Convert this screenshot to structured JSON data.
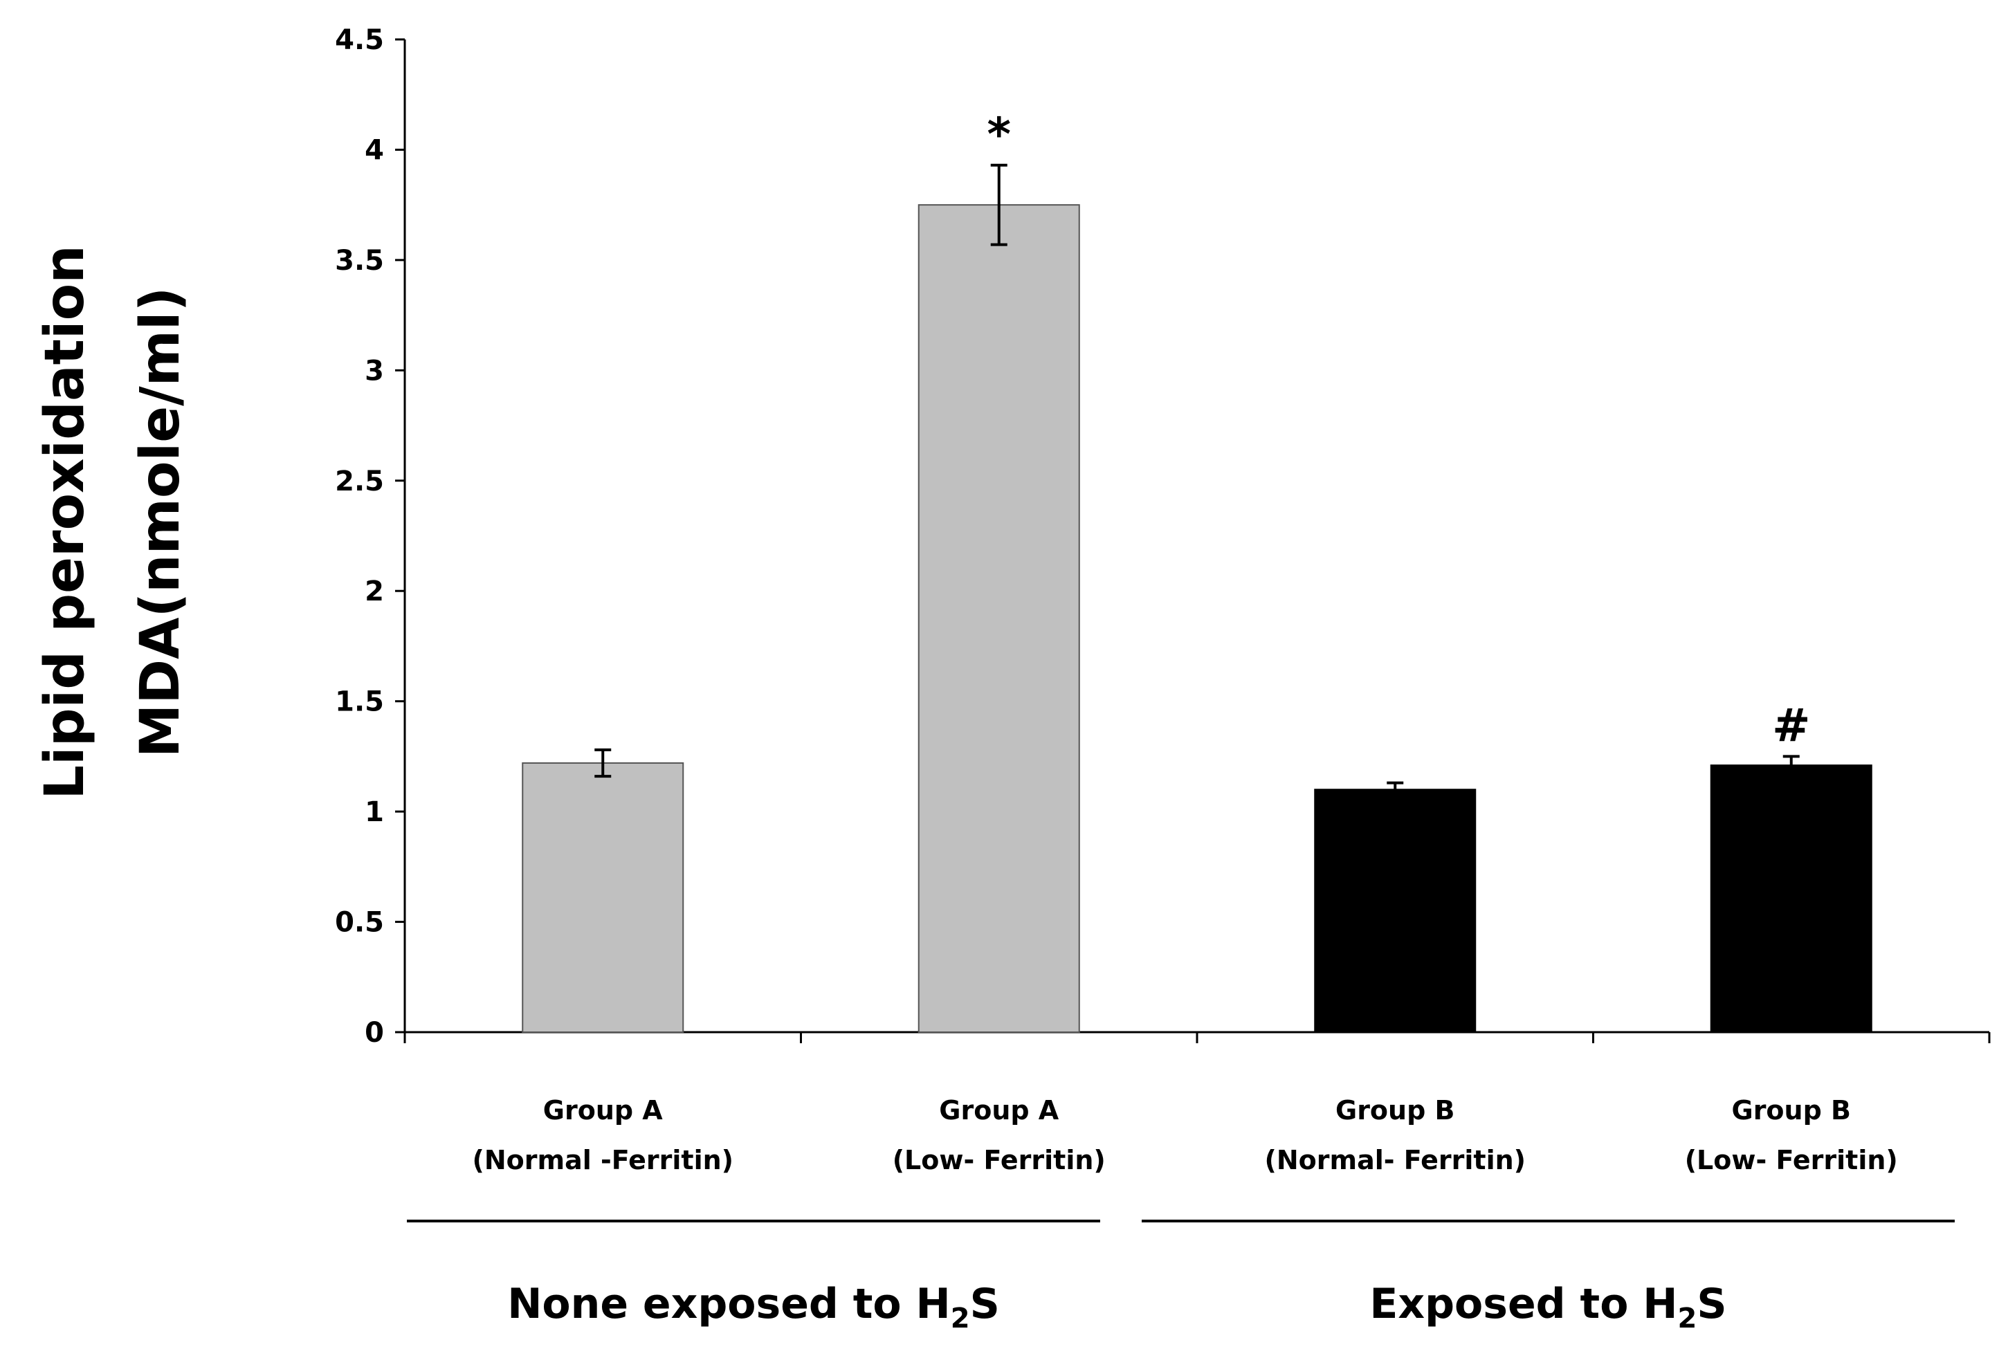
{
  "chart_data": {
    "type": "bar",
    "title": "",
    "ylabel_line1": "Lipid peroxidation",
    "ylabel_line2": "MDA(nmole/ml)",
    "ylim": [
      0,
      4.5
    ],
    "yticks": [
      "0",
      "0.5",
      "1",
      "1.5",
      "2",
      "2.5",
      "3",
      "3.5",
      "4",
      "4.5"
    ],
    "grid": false,
    "bars": [
      {
        "line1": "Group A",
        "line2": "(Normal -Ferritin)",
        "value": 1.22,
        "error": 0.06,
        "color": "#c0c0c0",
        "marker": ""
      },
      {
        "line1": "Group A",
        "line2": "(Low- Ferritin)",
        "value": 3.75,
        "error": 0.18,
        "color": "#c0c0c0",
        "marker": "*"
      },
      {
        "line1": "Group B",
        "line2": "(Normal- Ferritin)",
        "value": 1.1,
        "error": 0.03,
        "color": "#000000",
        "marker": ""
      },
      {
        "line1": "Group B",
        "line2": "(Low- Ferritin)",
        "value": 1.21,
        "error": 0.04,
        "color": "#000000",
        "marker": "#"
      }
    ],
    "groups": [
      {
        "label_main": "None exposed to H",
        "label_sub": "2",
        "label_end": "S"
      },
      {
        "label_main": "Exposed to H",
        "label_sub": "2",
        "label_end": "S"
      }
    ]
  }
}
